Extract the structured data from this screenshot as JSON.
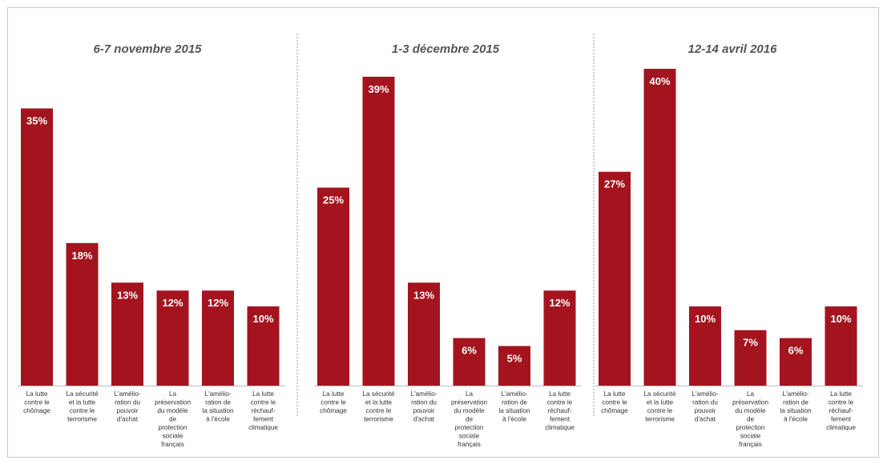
{
  "chart_data": [
    {
      "type": "bar",
      "title": "6-7 novembre 2015",
      "categories": [
        "La lutte contre le chômage",
        "La sécurité et la lutte contre le terrorisme",
        "L'amélio-ration du pouvoir d'achat",
        "La préservation du modèle de protection sociale français",
        "L'amélio-ration de la situation à l'école",
        "La lutte contre le réchauf-fement climatique"
      ],
      "category_lines": [
        [
          "La lutte",
          "contre le",
          "chômage"
        ],
        [
          "La sécurité",
          "et la lutte",
          "contre le",
          "terrorisme"
        ],
        [
          "L'amélio-",
          "ration du",
          "pouvoir",
          "d'achat"
        ],
        [
          "La",
          "préservation",
          "du modèle",
          "de",
          "protection",
          "sociale",
          "français"
        ],
        [
          "L'amélio-",
          "ration de",
          "la situation",
          "à l'école"
        ],
        [
          "La lutte",
          "contre le",
          "réchauf-",
          "fement",
          "climatique"
        ]
      ],
      "values": [
        35,
        18,
        13,
        12,
        12,
        10
      ],
      "labels": [
        "35%",
        "18%",
        "13%",
        "12%",
        "12%",
        "10%"
      ],
      "ylim": [
        0,
        40
      ],
      "color": "#a3141f"
    },
    {
      "type": "bar",
      "title": "1-3 décembre 2015",
      "categories": [
        "La lutte contre le chômage",
        "La sécurité et la lutte contre le terrorisme",
        "L'amélio-ration du pouvoir d'achat",
        "La préservation du modèle de protection sociale français",
        "L'amélio-ration de la situation à l'école",
        "La lutte contre le réchauf-fement climatique"
      ],
      "category_lines": [
        [
          "La lutte",
          "contre le",
          "chômage"
        ],
        [
          "La sécurité",
          "et la lutte",
          "contre le",
          "terrorisme"
        ],
        [
          "L'amélio-",
          "ration du",
          "pouvoir",
          "d'achat"
        ],
        [
          "La",
          "préservation",
          "du modèle",
          "de",
          "protection",
          "sociale",
          "français"
        ],
        [
          "L'amélio-",
          "ration de",
          "la situation",
          "à l'école"
        ],
        [
          "La lutte",
          "contre le",
          "réchauf-",
          "fement",
          "climatique"
        ]
      ],
      "values": [
        25,
        39,
        13,
        6,
        5,
        12
      ],
      "labels": [
        "25%",
        "39%",
        "13%",
        "6%",
        "5%",
        "12%"
      ],
      "ylim": [
        0,
        40
      ],
      "color": "#a3141f"
    },
    {
      "type": "bar",
      "title": "12-14 avril 2016",
      "categories": [
        "La lutte contre le chômage",
        "La sécurité et la lutte contre le terrorisme",
        "L'amélio-ration du pouvoir d'achat",
        "La préservation du modèle de protection sociale français",
        "L'amélio-ration de la situation à l'école",
        "La lutte contre le réchauf-fement climatique"
      ],
      "category_lines": [
        [
          "La lutte",
          "contre le",
          "chômage"
        ],
        [
          "La sécurité",
          "et la lutte",
          "contre le",
          "terrorisme"
        ],
        [
          "L'amélio-",
          "ration du",
          "pouvoir",
          "d'achat"
        ],
        [
          "La",
          "préservation",
          "du modèle",
          "de",
          "protection",
          "sociale",
          "français"
        ],
        [
          "L'amélio-",
          "ration de",
          "la situation",
          "à l'école"
        ],
        [
          "La lutte",
          "contre le",
          "réchauf-",
          "fement",
          "climatique"
        ]
      ],
      "values": [
        27,
        40,
        10,
        7,
        6,
        10
      ],
      "labels": [
        "27%",
        "40%",
        "10%",
        "7%",
        "6%",
        "10%"
      ],
      "ylim": [
        0,
        40
      ],
      "color": "#a3141f"
    }
  ]
}
